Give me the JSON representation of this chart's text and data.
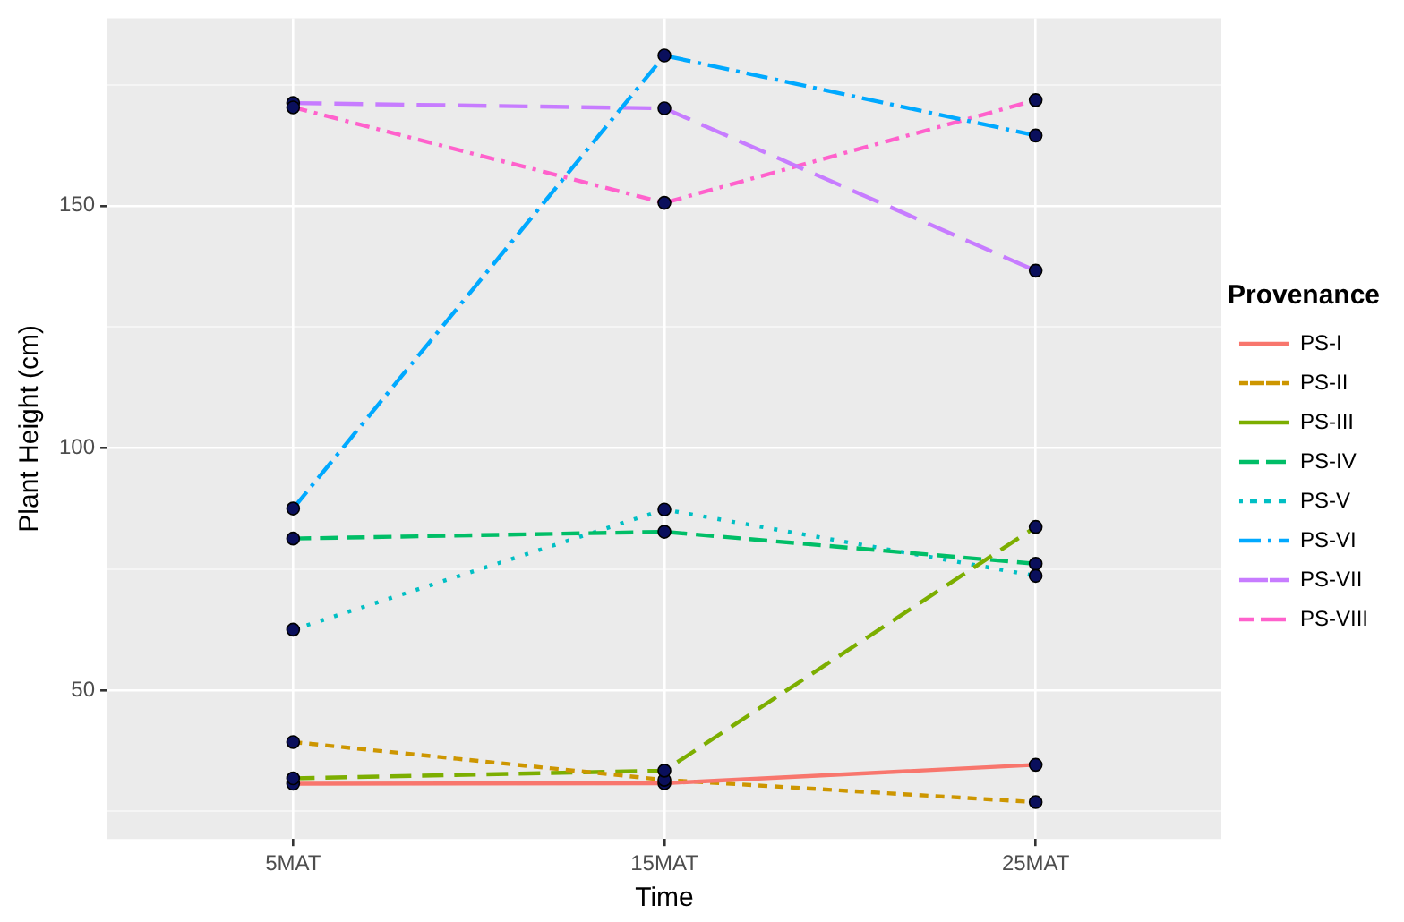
{
  "chart_data": {
    "type": "line",
    "xlabel": "Time",
    "ylabel": "Plant Height (cm)",
    "legend_title": "Provenance",
    "categories": [
      "5MAT",
      "15MAT",
      "25MAT"
    ],
    "ylim": [
      19.3,
      188.7
    ],
    "yticks": [
      {
        "value": 25,
        "label": null
      },
      50,
      {
        "value": 75,
        "label": null
      },
      100,
      {
        "value": 125,
        "label": null
      },
      150,
      {
        "value": 175,
        "label": null
      }
    ],
    "grid": true,
    "legend": "right",
    "marker": "none",
    "series": [
      {
        "name": "PS-I",
        "color": "#f8766d",
        "line_style": "solid",
        "values": [
          30.7,
          30.8,
          34.6
        ]
      },
      {
        "name": "PS-II",
        "color": "#cd9600",
        "line_style": "dashed",
        "values": [
          39.3,
          31.5,
          26.9
        ]
      },
      {
        "name": "PS-III",
        "color": "#7cae00",
        "line_style": "dashed",
        "values": [
          31.8,
          33.4,
          83.7
        ]
      },
      {
        "name": "PS-IV",
        "color": "#00be67",
        "line_style": "dashed",
        "values": [
          81.3,
          82.7,
          76.1
        ]
      },
      {
        "name": "PS-V",
        "color": "#00bfc4",
        "line_style": "dotted",
        "values": [
          62.5,
          87.3,
          73.6
        ]
      },
      {
        "name": "PS-VI",
        "color": "#00a9ff",
        "line_style": "dashed",
        "values": [
          87.5,
          181,
          164.5
        ]
      },
      {
        "name": "PS-VII",
        "color": "#c77cff",
        "line_style": "dashed",
        "values": [
          171.2,
          170.1,
          136.6
        ]
      },
      {
        "name": "PS-VIII",
        "color": "#ff61cc",
        "line_style": "dashed",
        "values": [
          170.3,
          150.6,
          171.8
        ]
      },
      {
        "type": "scatter",
        "color": "#0a0f5c",
        "marker": "circle",
        "x": [
          "5MAT",
          "5MAT",
          "5MAT",
          "5MAT",
          "5MAT",
          "5MAT",
          "5MAT",
          "5MAT",
          "15MAT",
          "15MAT",
          "15MAT",
          "15MAT",
          "15MAT",
          "15MAT",
          "15MAT",
          "15MAT",
          "25MAT",
          "25MAT",
          "25MAT",
          "25MAT",
          "25MAT",
          "25MAT",
          "25MAT",
          "25MAT"
        ],
        "values": [
          30.7,
          39.3,
          31.8,
          81.3,
          62.5,
          87.5,
          171.2,
          170.3,
          30.8,
          31.5,
          33.4,
          82.7,
          87.3,
          181,
          170.1,
          150.6,
          34.6,
          26.9,
          83.7,
          76.1,
          73.6,
          164.5,
          136.6,
          171.8
        ]
      }
    ]
  }
}
